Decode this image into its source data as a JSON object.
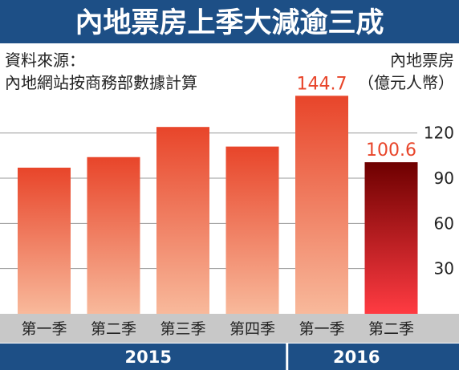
{
  "title": "內地票房上季大減逾三成",
  "source": {
    "heading": "資料來源：",
    "body": "內地網站按商務部數據計算"
  },
  "colors": {
    "title_bg": "#1d4f86",
    "bar_top": "#e8452a",
    "bar_bottom": "#f8b99b",
    "highlight_top": "#6e0000",
    "highlight_bottom": "#ff3b42",
    "value_label": "#e8452a",
    "axis_band": "#c8c8c8",
    "year_band": "#1d4f86"
  },
  "chart_data": {
    "type": "bar",
    "title": "內地票房上季大減逾三成",
    "ylabel": "內地票房\n（億元人幣）",
    "categories": [
      "第一季",
      "第二季",
      "第三季",
      "第四季",
      "第一季",
      "第二季"
    ],
    "values": [
      97,
      104,
      124,
      111,
      144.7,
      100.6
    ],
    "data_labels": [
      "",
      "",
      "",
      "",
      "144.7",
      "100.6"
    ],
    "highlight_index": 5,
    "year_groups": [
      {
        "label": "2015",
        "start": 0,
        "end": 3
      },
      {
        "label": "2016",
        "start": 4,
        "end": 5
      }
    ],
    "yticks": [
      30,
      60,
      90,
      120
    ],
    "ylim": [
      0,
      155
    ],
    "grid": true
  }
}
